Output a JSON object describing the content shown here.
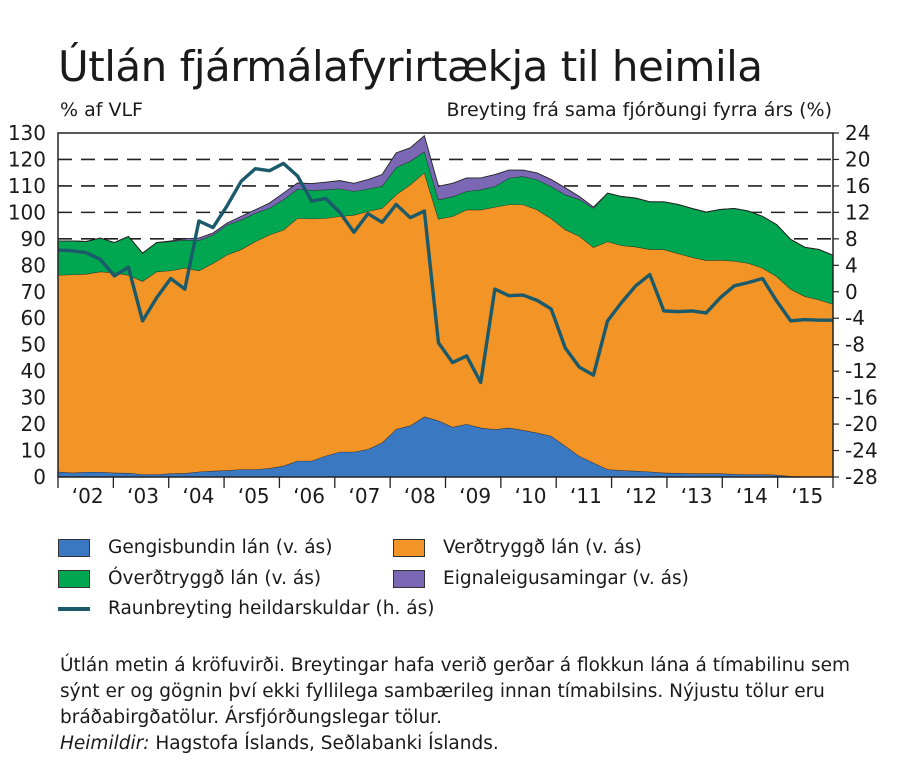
{
  "title": "Útlán fjármálafyrirtækja til heimila",
  "left_axis_label": "% af VLF",
  "right_axis_label": "Breyting frá sama fjórðungi fyrra árs (%)",
  "legend": [
    {
      "label": "Gengisbundin lán (v. ás)",
      "color": "#3a78c2"
    },
    {
      "label": "Verðtryggð lán (v. ás)",
      "color": "#f39426"
    },
    {
      "label": "Óverðtryggð lán (v. ás)",
      "color": "#00a650"
    },
    {
      "label": "Eignaleigusamingar (v. ás)",
      "color": "#7b68b5"
    },
    {
      "label": "Raunbreyting heildarskuldar (h. ás)",
      "color": "#1b5a6a"
    }
  ],
  "notes": {
    "text": "Útlán metin á kröfuvirði. Breytingar hafa verið gerðar á flokkun lána á tímabilinu sem sýnt er og gögnin því ekki fyllilega sambærileg innan tímabilsins. Nýjustu tölur eru bráðabirgðatölur. Ársfjórðungslegar tölur.",
    "sources_label": "Heimildir:",
    "sources": " Hagstofa Íslands, Seðlabanki Íslands."
  },
  "chart_data": {
    "type": "area",
    "title": "Útlán fjármálafyrirtækja til heimila",
    "x_start": "2002Q1",
    "x_end": "2015Q4",
    "frequency": "quarterly",
    "categories": [
      "‘02",
      "‘03",
      "‘04",
      "‘05",
      "‘06",
      "‘07",
      "‘08",
      "‘09",
      "‘10",
      "‘11",
      "‘12",
      "‘13",
      "‘14",
      "‘15"
    ],
    "ylabel": "% af VLF",
    "ylim": [
      0,
      130
    ],
    "yticks": [
      0,
      10,
      20,
      30,
      40,
      50,
      60,
      70,
      80,
      90,
      100,
      110,
      120,
      130
    ],
    "y2label": "Breyting frá sama fjórðungi fyrra árs (%)",
    "y2lim": [
      -28,
      24
    ],
    "y2ticks": [
      -28,
      -24,
      -20,
      -16,
      -12,
      -8,
      -4,
      0,
      4,
      8,
      12,
      16,
      20,
      24
    ],
    "grid": "dashed at 90, 100, 110, 120 (left axis)",
    "stacked_series": [
      {
        "name": "Gengisbundin lán (v. ás)",
        "color": "#3a78c2",
        "values": [
          2,
          1.6,
          1.9,
          1.9,
          1.6,
          1.5,
          1,
          1,
          1.3,
          1.4,
          2,
          2.3,
          2.5,
          2.9,
          2.9,
          3.3,
          4.2,
          6.1,
          6.1,
          8,
          9.5,
          9.5,
          10.5,
          13,
          18.1,
          19.4,
          22.8,
          21.3,
          18.9,
          20,
          18.6,
          18,
          18.6,
          17.7,
          16.7,
          15.5,
          11.7,
          7.9,
          5.4,
          2.9,
          2.5,
          2.3,
          2,
          1.6,
          1.5,
          1.3,
          1.3,
          1.3,
          1.1,
          1,
          1,
          0.8,
          0.3,
          0.2,
          0.2,
          0.2
        ]
      },
      {
        "name": "Verðtryggð lán (v. ás)",
        "color": "#f39426",
        "values": [
          74.3,
          74.9,
          74.8,
          75.7,
          75.6,
          74.8,
          73,
          76.6,
          76.7,
          77.6,
          76,
          78.5,
          81.5,
          83.1,
          86.1,
          88.2,
          89.2,
          91.7,
          91.5,
          89.8,
          89,
          89.5,
          89.9,
          88.6,
          88.6,
          91.1,
          92.2,
          76.2,
          79.6,
          81,
          82.4,
          84,
          84.4,
          85.3,
          84.3,
          82.2,
          81.8,
          83.1,
          81.4,
          86.1,
          85,
          84.7,
          84,
          84.4,
          83,
          81.7,
          80.6,
          80.7,
          80.5,
          79.8,
          78,
          75,
          70.7,
          68.1,
          66.8,
          65.1
        ]
      },
      {
        "name": "Óverðtryggð lán (v. ás)",
        "color": "#00a650",
        "values": [
          12.9,
          12.7,
          12.3,
          12.7,
          11.4,
          14.6,
          10.6,
          11,
          11,
          10.6,
          11.4,
          10.7,
          11.3,
          11.2,
          10.7,
          10.1,
          11.4,
          11.1,
          10.8,
          10.8,
          10.5,
          9,
          8.5,
          8.4,
          10.3,
          8.9,
          8,
          7.3,
          7.5,
          7,
          7.6,
          7.8,
          10,
          10.6,
          11.4,
          12.1,
          13.2,
          13.9,
          14.8,
          18.3,
          18.5,
          18.4,
          18,
          18,
          18.5,
          18.5,
          18.2,
          19.1,
          19.9,
          19.7,
          19.5,
          19.6,
          18.8,
          18.5,
          19,
          18.5
        ]
      },
      {
        "name": "Eignaleigusamingar (v. ás)",
        "color": "#7b68b5",
        "values": [
          0,
          0,
          0,
          0,
          0,
          0,
          0,
          0,
          0.2,
          0.4,
          0.9,
          0.7,
          0.7,
          1.3,
          1.3,
          1.9,
          2.5,
          2.2,
          2.5,
          2.8,
          3,
          3,
          3.5,
          4.3,
          5.5,
          5,
          6,
          5.1,
          5,
          5,
          4.4,
          4.5,
          3,
          2.4,
          2.5,
          2.6,
          2.6,
          1.1,
          0.4,
          0,
          0,
          0,
          0,
          0,
          0,
          0,
          0,
          0,
          0,
          0,
          0,
          0,
          0,
          0,
          0,
          0
        ]
      }
    ],
    "line_series": {
      "name": "Raunbreyting heildarskuldar (h. ás)",
      "color": "#1b5a6a",
      "axis": "right",
      "values": [
        6.3,
        6.2,
        5.9,
        4.9,
        2.4,
        3.7,
        -4.4,
        -0.9,
        2,
        0.4,
        10.7,
        9.7,
        13,
        16.7,
        18.6,
        18.3,
        19.4,
        17.5,
        13.7,
        14.1,
        12,
        9,
        11.8,
        10.5,
        13.2,
        11.2,
        12.2,
        -7.7,
        -10.7,
        -9.7,
        -13.7,
        0.4,
        -0.6,
        -0.5,
        -1.3,
        -2.6,
        -8.5,
        -11.4,
        -12.6,
        -4.4,
        -1.6,
        0.9,
        2.6,
        -2.9,
        -3,
        -2.9,
        -3.2,
        -0.9,
        0.9,
        1.4,
        2,
        -1.4,
        -4.4,
        -4.2,
        -4.3,
        -4.3
      ]
    }
  }
}
